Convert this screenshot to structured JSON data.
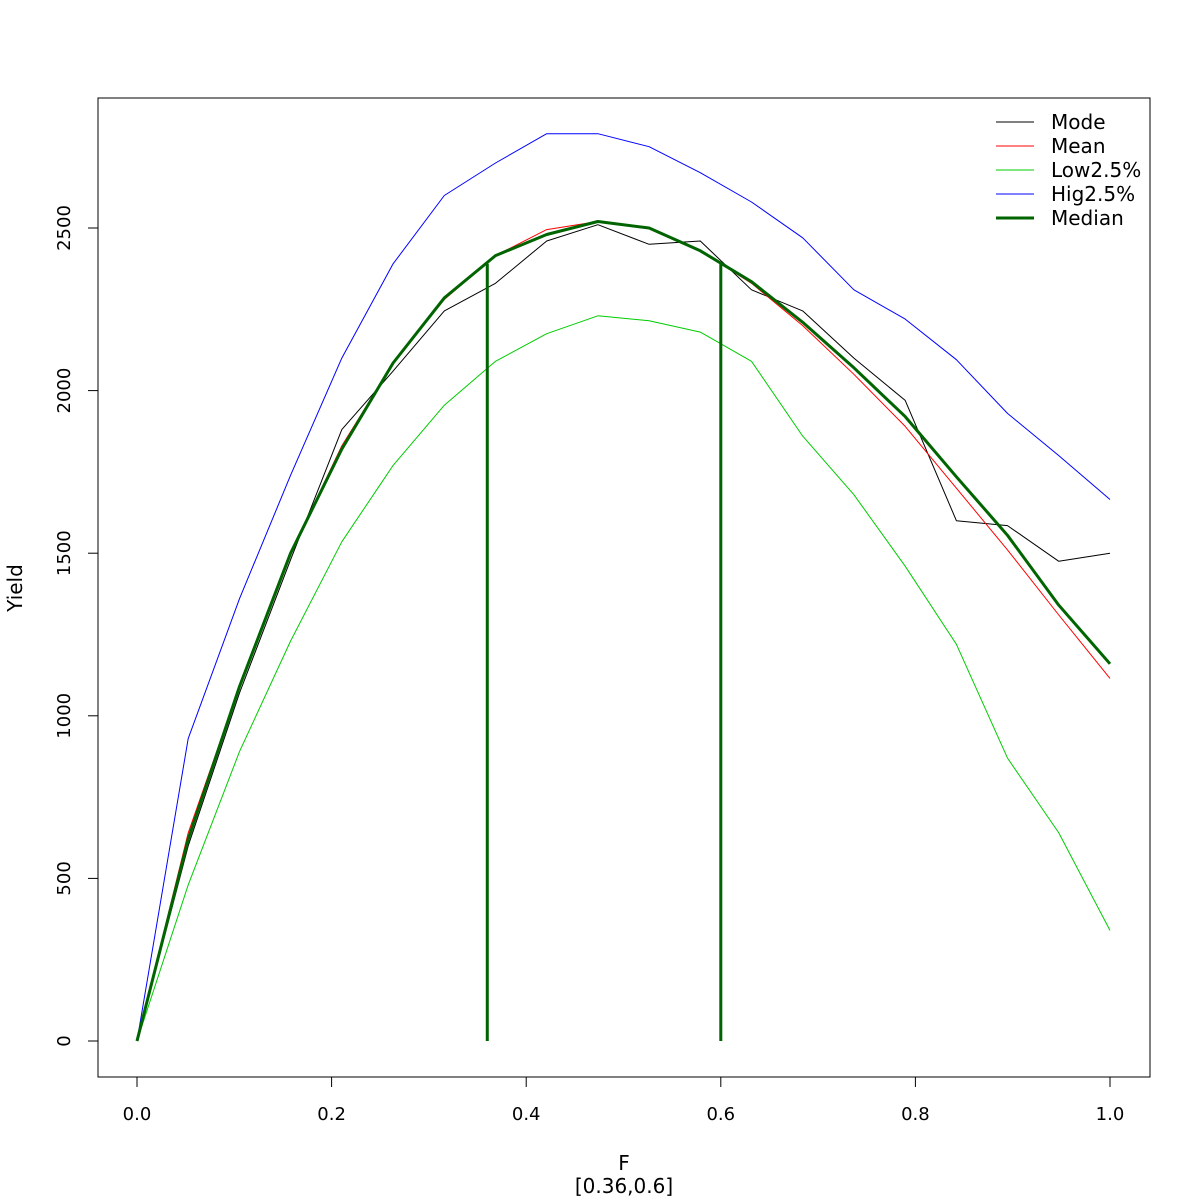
{
  "chart_data": {
    "type": "line",
    "title": "",
    "xlabel": "F",
    "subtitle": "[0.36,0.6]",
    "ylabel": "Yield",
    "xlim": [
      0.0,
      1.0
    ],
    "ylim": [
      0,
      2800
    ],
    "xticks": [
      0.0,
      0.2,
      0.4,
      0.6,
      0.8,
      1.0
    ],
    "xtick_labels": [
      "0.0",
      "0.2",
      "0.4",
      "0.6",
      "0.8",
      "1.0"
    ],
    "yticks": [
      0,
      500,
      1000,
      1500,
      2000,
      2500
    ],
    "ytick_labels": [
      "0",
      "500",
      "1000",
      "1500",
      "2000",
      "2500"
    ],
    "grid": false,
    "legend_position": "top-right",
    "x": [
      0.0,
      0.0526,
      0.1053,
      0.1579,
      0.2105,
      0.2632,
      0.3158,
      0.3684,
      0.4211,
      0.4737,
      0.5263,
      0.5789,
      0.6316,
      0.6842,
      0.7368,
      0.7895,
      0.8421,
      0.8947,
      0.9474,
      1.0
    ],
    "series": [
      {
        "name": "Mode",
        "color": "#000000",
        "width": "thin",
        "values": [
          0,
          600,
          1070,
          1480,
          1880,
          2060,
          2245,
          2330,
          2460,
          2510,
          2450,
          2460,
          2310,
          2245,
          2100,
          1970,
          1600,
          1585,
          1475,
          1500
        ]
      },
      {
        "name": "Mean",
        "color": "#ff0000",
        "width": "thin",
        "values": [
          0,
          640,
          1090,
          1500,
          1830,
          2085,
          2280,
          2415,
          2495,
          2520,
          2500,
          2430,
          2330,
          2200,
          2050,
          1890,
          1700,
          1510,
          1310,
          1115
        ]
      },
      {
        "name": "Low2.5%",
        "color": "#00cc00",
        "width": "thin",
        "values": [
          0,
          480,
          890,
          1230,
          1535,
          1770,
          1955,
          2090,
          2175,
          2230,
          2215,
          2180,
          2090,
          1860,
          1680,
          1460,
          1220,
          870,
          640,
          340
        ]
      },
      {
        "name": "Hig2.5%",
        "color": "#0000ff",
        "width": "thin",
        "values": [
          0,
          930,
          1360,
          1740,
          2100,
          2390,
          2600,
          2700,
          2790,
          2790,
          2750,
          2670,
          2580,
          2470,
          2310,
          2220,
          2095,
          1930,
          1800,
          1665
        ]
      },
      {
        "name": "Median",
        "color": "#006400",
        "width": "thick",
        "values": [
          0,
          620,
          1090,
          1500,
          1820,
          2085,
          2285,
          2415,
          2480,
          2520,
          2500,
          2430,
          2335,
          2210,
          2070,
          1920,
          1735,
          1555,
          1340,
          1160
        ]
      }
    ],
    "vlines": [
      {
        "x": 0.36,
        "y_from": 0,
        "y_to": 2390,
        "color": "#006400"
      },
      {
        "x": 0.6,
        "y_from": 0,
        "y_to": 2395,
        "color": "#006400"
      }
    ]
  }
}
